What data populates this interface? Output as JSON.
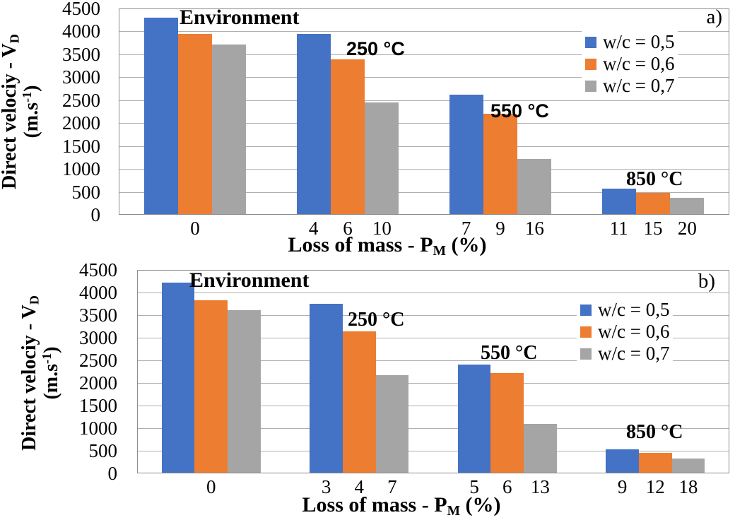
{
  "colors": {
    "series": [
      "#4472C4",
      "#ED7D31",
      "#A5A5A5"
    ],
    "gridline": "#AFAFAF",
    "plot_border": "#8C8C8C",
    "background": "#FFFFFF",
    "text": "#000000"
  },
  "axis_labels": {
    "y": {
      "main": "Direct velociy - V",
      "sub": "D",
      "unit_pre": "(m.s",
      "unit_sup": "-1",
      "unit_post": ")"
    },
    "x": {
      "main": "Loss of mass - P",
      "sub": "M",
      "post": " (%)"
    }
  },
  "legend": [
    {
      "label": "w/c = 0,5",
      "color": "#4472C4"
    },
    {
      "label": "w/c = 0,6",
      "color": "#ED7D31"
    },
    {
      "label": "w/c = 0,7",
      "color": "#A5A5A5"
    }
  ],
  "yticks": [
    "4500",
    "4000",
    "3500",
    "3000",
    "2500",
    "2000",
    "1500",
    "1000",
    "500",
    "0"
  ],
  "chart_data": [
    {
      "type": "bar",
      "panel_label": "a)",
      "title": "",
      "ylabel": "Direct velociy - V_D (m.s-1)",
      "xlabel": "Loss of mass - P_M (%)",
      "ylim": [
        0,
        4500
      ],
      "ytick_step": 500,
      "grid": "horizontal-major",
      "legend_position": "top-right-inside",
      "series_names": [
        "w/c = 0,5",
        "w/c = 0,6",
        "w/c = 0,7"
      ],
      "groups": [
        {
          "annotation": "Environment",
          "x_ticks": [
            "0"
          ],
          "values": [
            4280,
            3930,
            3700
          ]
        },
        {
          "annotation": "250 °C",
          "x_ticks": [
            "4",
            "6",
            "10"
          ],
          "values": [
            3930,
            3370,
            2430
          ]
        },
        {
          "annotation": "550 °C",
          "x_ticks": [
            "7",
            "9",
            "16"
          ],
          "values": [
            2600,
            2190,
            1200
          ]
        },
        {
          "annotation": "850 °C",
          "x_ticks": [
            "11",
            "15",
            "20"
          ],
          "values": [
            560,
            470,
            360
          ]
        }
      ]
    },
    {
      "type": "bar",
      "panel_label": "b)",
      "title": "",
      "ylabel": "Direct velociy - V_D (m.s-1)",
      "xlabel": "Loss of mass - P_M (%)",
      "ylim": [
        0,
        4500
      ],
      "ytick_step": 500,
      "grid": "horizontal-major",
      "legend_position": "top-right-inside",
      "series_names": [
        "w/c = 0,5",
        "w/c = 0,6",
        "w/c = 0,7"
      ],
      "groups": [
        {
          "annotation": "Environment",
          "x_ticks": [
            "0"
          ],
          "values": [
            4200,
            3810,
            3600
          ]
        },
        {
          "annotation": "250 °C",
          "x_ticks": [
            "3",
            "4",
            "7"
          ],
          "values": [
            3740,
            3120,
            2160
          ]
        },
        {
          "annotation": "550 °C",
          "x_ticks": [
            "5",
            "6",
            "13"
          ],
          "values": [
            2390,
            2210,
            1080
          ]
        },
        {
          "annotation": "850 °C",
          "x_ticks": [
            "9",
            "12",
            "18"
          ],
          "values": [
            520,
            440,
            310
          ]
        }
      ]
    }
  ]
}
